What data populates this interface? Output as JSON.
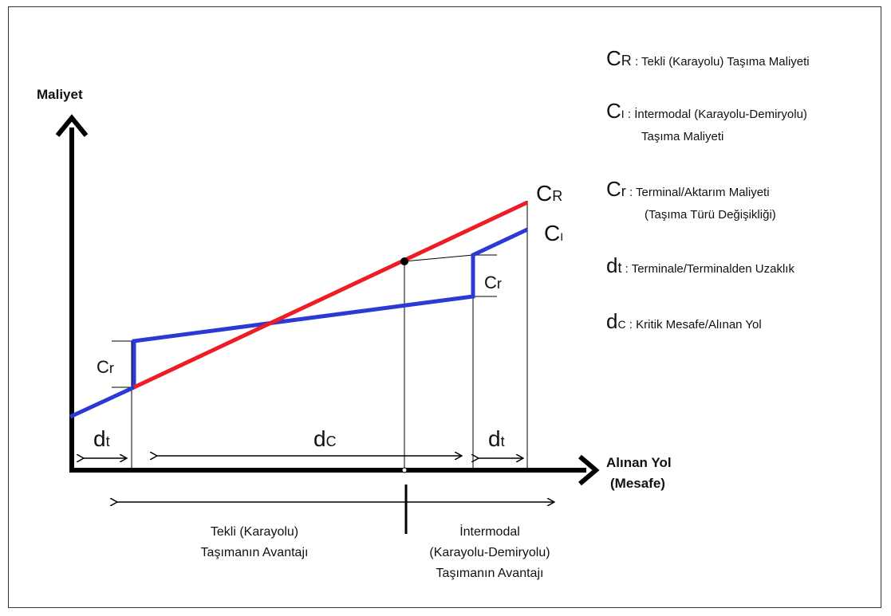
{
  "axes": {
    "y_label": "Maliyet",
    "x_label_line1": "Alınan Yol",
    "x_label_line2": "(Mesafe)"
  },
  "lines": {
    "cr_color": "#ee1c24",
    "ci_color": "#2b3ad6",
    "cr_label_main": "C",
    "cr_label_sub": "R",
    "ci_label_main": "C",
    "ci_label_sub": "I"
  },
  "markers": {
    "cr_transfer_main": "C",
    "cr_transfer_sub": "r",
    "dt_main": "d",
    "dt_sub": "t",
    "dc_main": "d",
    "dc_sub": "C"
  },
  "legend": {
    "items": [
      {
        "symbol": "C",
        "sub": "R",
        "sep": " : ",
        "text": "Tekli (Karayolu) Taşıma Maliyeti",
        "text2": ""
      },
      {
        "symbol": "C",
        "sub": "I",
        "sep": " : ",
        "text": "İntermodal (Karayolu-Demiryolu)",
        "text2": "Taşıma Maliyeti"
      },
      {
        "symbol": "C",
        "sub": "r",
        "sep": " : ",
        "text": "Terminal/Aktarım Maliyeti",
        "text2": "(Taşıma Türü Değişikliği)"
      },
      {
        "symbol": "d",
        "sub": "t",
        "sep": " : ",
        "text": "Terminale/Terminalden Uzaklık",
        "text2": ""
      },
      {
        "symbol": "d",
        "sub": "C",
        "sep": " : ",
        "text": "Kritik Mesafe/Alınan Yol",
        "text2": ""
      }
    ]
  },
  "advantages": {
    "left_line1": "Tekli (Karayolu)",
    "left_line2": "Taşımanın Avantajı",
    "right_line1": "İntermodal",
    "right_line2": "(Karayolu-Demiryolu)",
    "right_line3": "Taşımanın Avantajı"
  }
}
